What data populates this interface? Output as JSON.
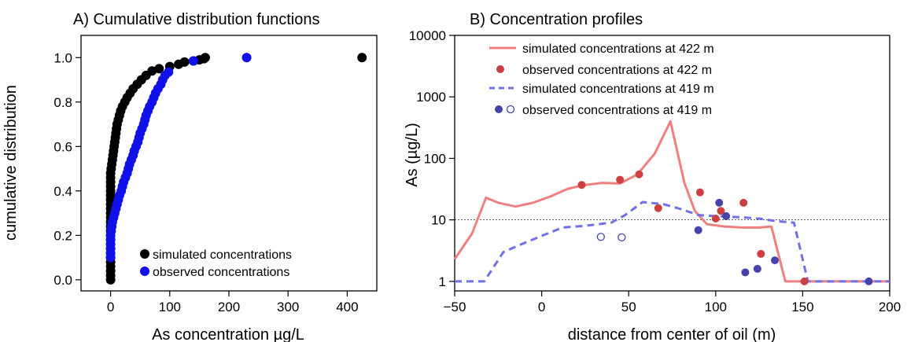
{
  "chart_data": [
    {
      "type": "scatter",
      "title": "A) Cumulative distribution functions",
      "xlabel": "As concentration µg/L",
      "ylabel": "cumulative distribution",
      "xlim": [
        -50,
        450
      ],
      "ylim": [
        -0.05,
        1.1
      ],
      "xticks": [
        0,
        100,
        200,
        300,
        400
      ],
      "yticks": [
        0.0,
        0.2,
        0.4,
        0.6,
        0.8,
        1.0
      ],
      "legend_position": "bottom-right",
      "series": [
        {
          "name": "simulated concentrations",
          "color": "#000000",
          "points": [
            [
              0,
              0.0
            ],
            [
              0,
              0.02
            ],
            [
              0,
              0.04
            ],
            [
              0,
              0.06
            ],
            [
              0,
              0.08
            ],
            [
              0,
              0.1
            ],
            [
              0,
              0.12
            ],
            [
              0,
              0.14
            ],
            [
              0,
              0.16
            ],
            [
              0,
              0.18
            ],
            [
              0,
              0.2
            ],
            [
              0,
              0.22
            ],
            [
              0,
              0.24
            ],
            [
              0,
              0.26
            ],
            [
              0,
              0.28
            ],
            [
              0,
              0.3
            ],
            [
              0,
              0.32
            ],
            [
              0,
              0.34
            ],
            [
              0,
              0.36
            ],
            [
              0,
              0.38
            ],
            [
              0,
              0.4
            ],
            [
              0,
              0.42
            ],
            [
              0,
              0.44
            ],
            [
              0,
              0.46
            ],
            [
              0,
              0.48
            ],
            [
              1,
              0.5
            ],
            [
              2,
              0.52
            ],
            [
              3,
              0.54
            ],
            [
              4,
              0.56
            ],
            [
              5,
              0.58
            ],
            [
              6,
              0.6
            ],
            [
              7,
              0.62
            ],
            [
              8,
              0.64
            ],
            [
              9,
              0.66
            ],
            [
              10,
              0.68
            ],
            [
              11,
              0.7
            ],
            [
              13,
              0.72
            ],
            [
              15,
              0.74
            ],
            [
              17,
              0.76
            ],
            [
              20,
              0.78
            ],
            [
              24,
              0.8
            ],
            [
              28,
              0.82
            ],
            [
              33,
              0.84
            ],
            [
              38,
              0.86
            ],
            [
              45,
              0.88
            ],
            [
              52,
              0.9
            ],
            [
              60,
              0.92
            ],
            [
              70,
              0.94
            ],
            [
              82,
              0.95
            ],
            [
              100,
              0.96
            ],
            [
              115,
              0.97
            ],
            [
              125,
              0.98
            ],
            [
              140,
              0.985
            ],
            [
              150,
              0.99
            ],
            [
              158,
              0.995
            ],
            [
              160,
              1.0
            ],
            [
              425,
              1.0
            ]
          ]
        },
        {
          "name": "observed concentrations",
          "color": "#1010e8",
          "points": [
            [
              0,
              0.1
            ],
            [
              0,
              0.12
            ],
            [
              0,
              0.14
            ],
            [
              0,
              0.16
            ],
            [
              0,
              0.18
            ],
            [
              0,
              0.2
            ],
            [
              1,
              0.22
            ],
            [
              2,
              0.24
            ],
            [
              3,
              0.26
            ],
            [
              5,
              0.28
            ],
            [
              7,
              0.3
            ],
            [
              9,
              0.32
            ],
            [
              11,
              0.34
            ],
            [
              13,
              0.36
            ],
            [
              15,
              0.38
            ],
            [
              18,
              0.4
            ],
            [
              20,
              0.42
            ],
            [
              22,
              0.44
            ],
            [
              25,
              0.46
            ],
            [
              28,
              0.48
            ],
            [
              30,
              0.5
            ],
            [
              32,
              0.52
            ],
            [
              35,
              0.54
            ],
            [
              38,
              0.56
            ],
            [
              40,
              0.58
            ],
            [
              43,
              0.6
            ],
            [
              46,
              0.62
            ],
            [
              48,
              0.64
            ],
            [
              50,
              0.66
            ],
            [
              53,
              0.68
            ],
            [
              56,
              0.7
            ],
            [
              58,
              0.72
            ],
            [
              60,
              0.74
            ],
            [
              63,
              0.76
            ],
            [
              66,
              0.78
            ],
            [
              70,
              0.8
            ],
            [
              73,
              0.82
            ],
            [
              76,
              0.84
            ],
            [
              80,
              0.86
            ],
            [
              85,
              0.88
            ],
            [
              88,
              0.9
            ],
            [
              92,
              0.92
            ],
            [
              98,
              0.935
            ],
            [
              140,
              0.985
            ],
            [
              230,
              1.0
            ]
          ]
        }
      ]
    },
    {
      "type": "line",
      "title": "B) Concentration profiles",
      "xlabel": "distance from center of oil (m)",
      "ylabel": "As (µg/L)",
      "xlim": [
        -50,
        200
      ],
      "ylim": [
        0.7,
        10000
      ],
      "y_scale": "log",
      "xticks": [
        -50,
        0,
        50,
        100,
        150,
        200
      ],
      "yticks": [
        1,
        10,
        100,
        1000,
        10000
      ],
      "reference_line_y": 10,
      "legend_position": "top-left",
      "series": [
        {
          "name": "simulated concentrations at 422 m",
          "kind": "line-solid",
          "color": "#f08080",
          "points": [
            [
              -50,
              2.3
            ],
            [
              -40,
              6
            ],
            [
              -32,
              23
            ],
            [
              -25,
              19
            ],
            [
              -15,
              16.5
            ],
            [
              -5,
              19
            ],
            [
              5,
              24
            ],
            [
              15,
              32
            ],
            [
              25,
              37
            ],
            [
              35,
              40
            ],
            [
              45,
              39
            ],
            [
              55,
              55
            ],
            [
              65,
              120
            ],
            [
              74,
              400
            ],
            [
              82,
              40
            ],
            [
              88,
              14
            ],
            [
              95,
              8.5
            ],
            [
              105,
              7.8
            ],
            [
              115,
              7.5
            ],
            [
              125,
              7.5
            ],
            [
              132,
              7.8
            ],
            [
              140,
              1
            ],
            [
              150,
              1
            ],
            [
              170,
              1
            ],
            [
              200,
              1
            ]
          ]
        },
        {
          "name": "observed concentrations at 422 m",
          "kind": "points",
          "color": "#cc4040",
          "points": [
            [
              23,
              37
            ],
            [
              45,
              45
            ],
            [
              56,
              55
            ],
            [
              67,
              15.5
            ],
            [
              91,
              28
            ],
            [
              100,
              10.5
            ],
            [
              103,
              14
            ],
            [
              116,
              19
            ],
            [
              126,
              2.8
            ],
            [
              151,
              1
            ]
          ]
        },
        {
          "name": "simulated concentrations at 419 m",
          "kind": "line-dashed",
          "color": "#7070e8",
          "points": [
            [
              -50,
              1
            ],
            [
              -33,
              1
            ],
            [
              -22,
              3
            ],
            [
              -10,
              4.2
            ],
            [
              0,
              5.5
            ],
            [
              12,
              7.5
            ],
            [
              25,
              8
            ],
            [
              40,
              9
            ],
            [
              48,
              12
            ],
            [
              58,
              19.5
            ],
            [
              70,
              18
            ],
            [
              80,
              15
            ],
            [
              90,
              12
            ],
            [
              100,
              11.5
            ],
            [
              115,
              11
            ],
            [
              125,
              10.5
            ],
            [
              135,
              9.5
            ],
            [
              145,
              9
            ],
            [
              153,
              1
            ],
            [
              170,
              1
            ],
            [
              200,
              1
            ]
          ]
        },
        {
          "name": "observed concentrations at 419 m",
          "kind": "points",
          "color": "#4444aa",
          "points": [
            [
              90,
              6.8
            ],
            [
              102,
              19
            ],
            [
              106,
              11.5
            ],
            [
              117,
              1.4
            ],
            [
              124,
              1.6
            ],
            [
              134,
              2.2
            ],
            [
              188,
              1
            ]
          ]
        },
        {
          "name": "observed concentrations at 419 m (open)",
          "kind": "open-points",
          "color": "#4444aa",
          "points": [
            [
              34,
              5.3
            ],
            [
              46,
              5.2
            ]
          ]
        }
      ]
    }
  ]
}
